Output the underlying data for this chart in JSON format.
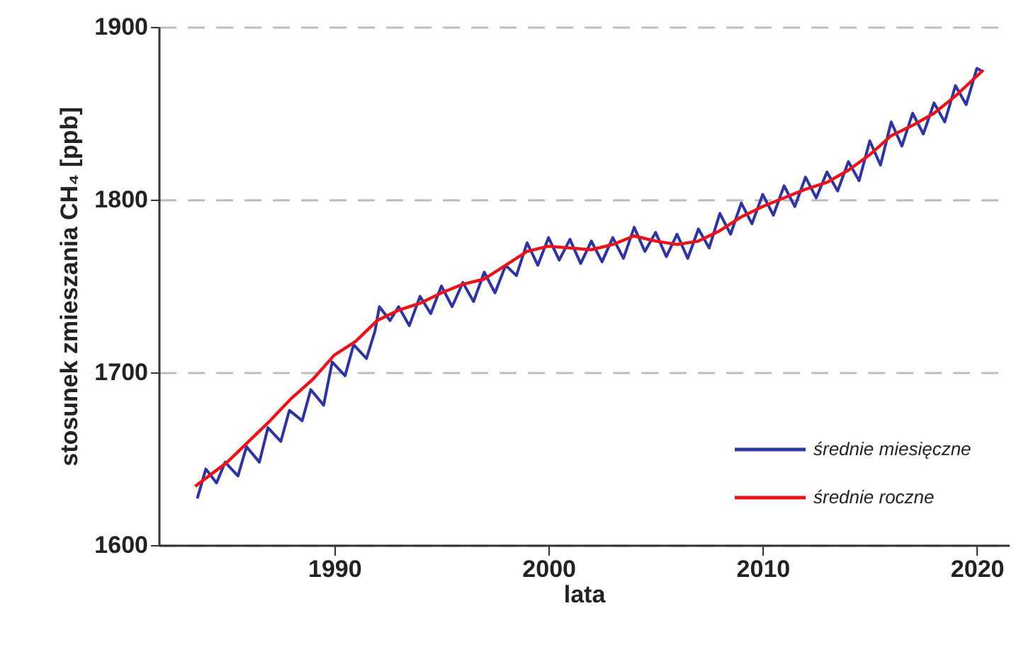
{
  "chart_data": {
    "type": "line",
    "xlabel": "lata",
    "ylabel": "stosunek zmieszania CH₄ [ppb]",
    "xlim": [
      1981.8,
      2021.5
    ],
    "xticks": [
      1990,
      2000,
      2010,
      2020
    ],
    "ylim": [
      1600,
      1900
    ],
    "yticks": [
      1600,
      1700,
      1800,
      1900
    ],
    "grid": "y",
    "legend": "bottom right",
    "line_style": "solid",
    "series": [
      {
        "name": "średnie miesięczne",
        "color": "#2e35a0",
        "x": [
          1983.6,
          1984.0,
          1984.5,
          1984.9,
          1985.5,
          1985.9,
          1986.5,
          1986.9,
          1987.5,
          1987.9,
          1988.5,
          1988.9,
          1989.5,
          1989.9,
          1990.5,
          1990.9,
          1991.5,
          1991.9,
          1992.1,
          1992.6,
          1993.0,
          1993.5,
          1994.0,
          1994.5,
          1995.0,
          1995.5,
          1996.0,
          1996.5,
          1997.0,
          1997.5,
          1998.0,
          1998.5,
          1999.0,
          1999.5,
          2000.0,
          2000.5,
          2001.0,
          2001.5,
          2002.0,
          2002.5,
          2003.0,
          2003.5,
          2004.0,
          2004.5,
          2005.0,
          2005.5,
          2006.0,
          2006.5,
          2007.0,
          2007.5,
          2008.0,
          2008.5,
          2009.0,
          2009.5,
          2010.0,
          2010.5,
          2011.0,
          2011.5,
          2012.0,
          2012.5,
          2013.0,
          2013.5,
          2014.0,
          2014.5,
          2015.0,
          2015.5,
          2016.0,
          2016.5,
          2017.0,
          2017.5,
          2018.0,
          2018.5,
          2019.0,
          2019.5,
          2020.0,
          2020.3
        ],
        "values": [
          1627,
          1644,
          1636,
          1648,
          1640,
          1657,
          1648,
          1668,
          1660,
          1678,
          1672,
          1690,
          1681,
          1706,
          1698,
          1716,
          1708,
          1724,
          1738,
          1730,
          1738,
          1727,
          1744,
          1734,
          1750,
          1738,
          1752,
          1741,
          1758,
          1746,
          1762,
          1756,
          1775,
          1762,
          1778,
          1765,
          1777,
          1763,
          1776,
          1764,
          1778,
          1766,
          1784,
          1770,
          1781,
          1767,
          1780,
          1766,
          1783,
          1772,
          1792,
          1780,
          1798,
          1786,
          1803,
          1791,
          1808,
          1796,
          1813,
          1801,
          1816,
          1805,
          1822,
          1811,
          1834,
          1820,
          1845,
          1831,
          1850,
          1838,
          1856,
          1845,
          1866,
          1855,
          1876,
          1874
        ]
      },
      {
        "name": "średnie roczne",
        "color": "#e8141c",
        "x": [
          1983.5,
          1985,
          1986,
          1987,
          1988,
          1989,
          1990,
          1991,
          1992,
          1993,
          1994,
          1995,
          1996,
          1997,
          1998,
          1999,
          2000,
          2001,
          2002,
          2003,
          2004,
          2005,
          2006,
          2007,
          2008,
          2009,
          2010,
          2011,
          2012,
          2013,
          2014,
          2015,
          2016,
          2017,
          2018,
          2019,
          2020.3
        ],
        "values": [
          1634,
          1648,
          1660,
          1672,
          1685,
          1696,
          1710,
          1718,
          1730,
          1736,
          1740,
          1746,
          1751,
          1754,
          1762,
          1770,
          1773,
          1772,
          1771,
          1774,
          1779,
          1776,
          1774,
          1776,
          1782,
          1790,
          1796,
          1801,
          1806,
          1810,
          1817,
          1826,
          1837,
          1843,
          1850,
          1860,
          1875
        ]
      }
    ]
  }
}
